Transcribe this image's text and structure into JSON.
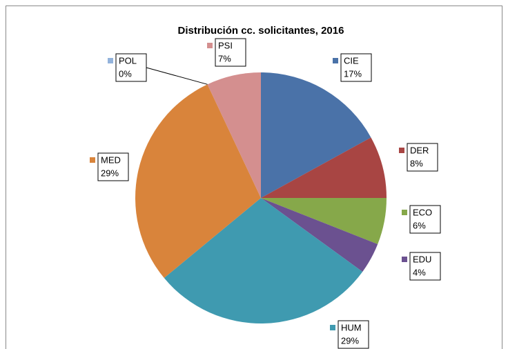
{
  "chart_data": {
    "type": "pie",
    "title": "Distribución cc. solicitantes, 2016",
    "categories": [
      "CIE",
      "DER",
      "ECO",
      "EDU",
      "HUM",
      "MED",
      "POL",
      "PSI"
    ],
    "values": [
      17,
      8,
      6,
      4,
      29,
      29,
      0,
      7
    ],
    "value_labels": [
      "17%",
      "8%",
      "6%",
      "4%",
      "29%",
      "29%",
      "0%",
      "7%"
    ],
    "colors": [
      "#4a72a8",
      "#a84543",
      "#86a84a",
      "#6b5190",
      "#3f9ab0",
      "#d9843b",
      "#93b3dc",
      "#d48f8f"
    ]
  }
}
